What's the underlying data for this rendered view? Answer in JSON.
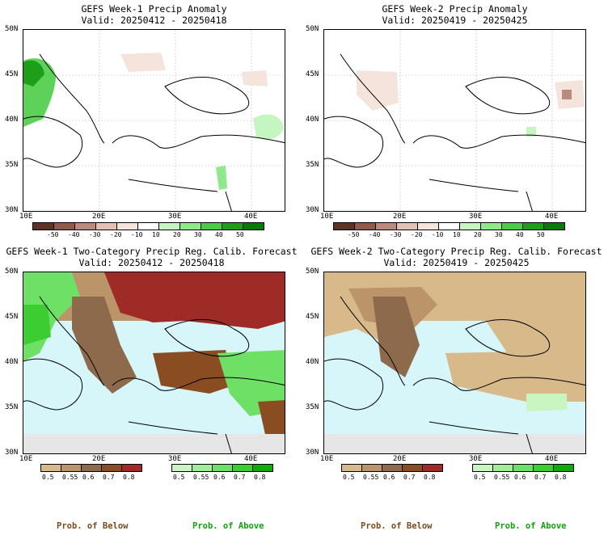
{
  "panels": [
    {
      "title": "GEFS Week-1 Precip Anomaly",
      "valid": "Valid: 20250412 - 20250418"
    },
    {
      "title": "GEFS Week-2 Precip Anomaly",
      "valid": "Valid: 20250419 - 20250425"
    },
    {
      "title": "GEFS Week-1 Two-Category Precip Reg. Calib. Forecast",
      "valid": "Valid: 20250412 - 20250418"
    },
    {
      "title": "GEFS Week-2 Two-Category Precip Reg. Calib. Forecast",
      "valid": "Valid: 20250419 - 20250425"
    }
  ],
  "lat_labels": [
    "50N",
    "45N",
    "40N",
    "35N",
    "30N"
  ],
  "lon_labels": [
    "10E",
    "20E",
    "30E",
    "40E"
  ],
  "anomaly_colorbar": {
    "ticks": [
      "-50",
      "-40",
      "-30",
      "-20",
      "-10",
      "10",
      "20",
      "30",
      "40",
      "50"
    ],
    "colors": [
      "#5e3326",
      "#8f5a4a",
      "#b98a7d",
      "#e1c1b4",
      "#f5e4dc",
      "#ffffff",
      "#c5f5c0",
      "#8fe88a",
      "#4ccc46",
      "#1f9e1a",
      "#0a7a07"
    ]
  },
  "below_colorbar": {
    "ticks": [
      "0.5",
      "0.55",
      "0.6",
      "0.7",
      "0.8"
    ],
    "colors": [
      "#d8b98a",
      "#bc946a",
      "#8e6a4c",
      "#8a4d22",
      "#9e2b26"
    ]
  },
  "above_colorbar": {
    "ticks": [
      "0.5",
      "0.55",
      "0.6",
      "0.7",
      "0.8"
    ],
    "colors": [
      "#c8f5c0",
      "#a0ee98",
      "#6fe066",
      "#3ccd33",
      "#11a90d"
    ]
  },
  "footers": [
    {
      "label": "Prob. of Below",
      "color": "#7a4a22"
    },
    {
      "label": "Prob. of Above",
      "color": "#12a012"
    },
    {
      "label": "Prob. of Below",
      "color": "#7a4a22"
    },
    {
      "label": "Prob. of Above",
      "color": "#12a012"
    }
  ]
}
